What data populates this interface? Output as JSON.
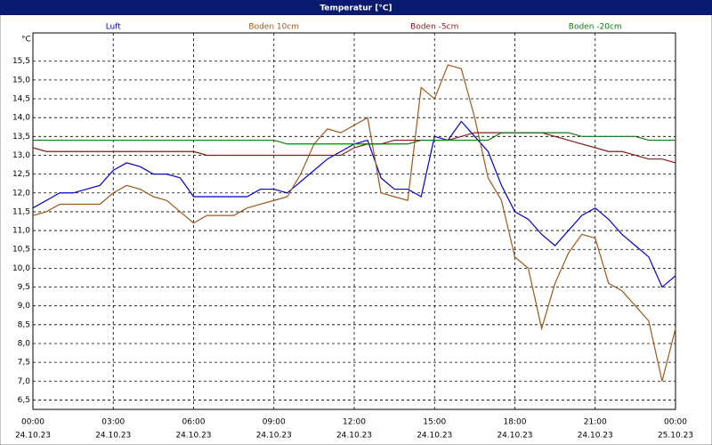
{
  "chart_data": {
    "type": "line",
    "title": "Temperatur [°C]",
    "y_unit": "°C",
    "x": [
      0,
      0.5,
      1,
      1.5,
      2,
      2.5,
      3,
      3.5,
      4,
      4.5,
      5,
      5.5,
      6,
      6.5,
      7,
      7.5,
      8,
      8.5,
      9,
      9.5,
      10,
      10.5,
      11,
      11.5,
      12,
      12.5,
      13,
      13.5,
      14,
      14.5,
      15,
      15.5,
      16,
      16.5,
      17,
      17.5,
      18,
      18.5,
      19,
      19.5,
      20,
      20.5,
      21,
      21.5,
      22,
      22.5,
      23,
      23.5,
      24
    ],
    "series": [
      {
        "name": "Luft",
        "color": "#0000cc",
        "values": [
          11.6,
          11.8,
          12.0,
          12.0,
          12.1,
          12.2,
          12.6,
          12.8,
          12.7,
          12.5,
          12.5,
          12.4,
          11.9,
          11.9,
          11.9,
          11.9,
          11.9,
          12.1,
          12.1,
          12.0,
          12.3,
          12.6,
          12.9,
          13.1,
          13.3,
          13.4,
          12.4,
          12.1,
          12.1,
          11.9,
          13.5,
          13.4,
          13.9,
          13.5,
          13.1,
          12.2,
          11.5,
          11.3,
          10.9,
          10.6,
          11.0,
          11.4,
          11.6,
          11.3,
          10.9,
          10.6,
          10.3,
          9.5,
          9.8
        ]
      },
      {
        "name": "Boden 10cm",
        "color": "#a0581a",
        "values": [
          11.4,
          11.5,
          11.7,
          11.7,
          11.7,
          11.7,
          12.0,
          12.2,
          12.1,
          11.9,
          11.8,
          11.5,
          11.2,
          11.4,
          11.4,
          11.4,
          11.6,
          11.7,
          11.8,
          11.9,
          12.5,
          13.3,
          13.7,
          13.6,
          13.8,
          14.0,
          12.0,
          11.9,
          11.8,
          14.8,
          14.5,
          15.4,
          15.3,
          14.0,
          12.4,
          11.8,
          10.3,
          10.0,
          8.4,
          9.6,
          10.4,
          10.9,
          10.8,
          9.6,
          9.4,
          9.0,
          8.6,
          7.0,
          8.4
        ]
      },
      {
        "name": "Boden -5cm",
        "color": "#8b1a1a",
        "values": [
          13.2,
          13.1,
          13.1,
          13.1,
          13.1,
          13.1,
          13.1,
          13.1,
          13.1,
          13.1,
          13.1,
          13.1,
          13.1,
          13.0,
          13.0,
          13.0,
          13.0,
          13.0,
          13.0,
          13.0,
          13.0,
          13.0,
          13.0,
          13.0,
          13.2,
          13.3,
          13.3,
          13.4,
          13.4,
          13.4,
          13.4,
          13.4,
          13.5,
          13.6,
          13.6,
          13.6,
          13.6,
          13.6,
          13.6,
          13.5,
          13.4,
          13.3,
          13.2,
          13.1,
          13.1,
          13.0,
          12.9,
          12.9,
          12.8
        ]
      },
      {
        "name": "Boden -20cm",
        "color": "#0a7a0a",
        "values": [
          13.4,
          13.4,
          13.4,
          13.4,
          13.4,
          13.4,
          13.4,
          13.4,
          13.4,
          13.4,
          13.4,
          13.4,
          13.4,
          13.4,
          13.4,
          13.4,
          13.4,
          13.4,
          13.4,
          13.3,
          13.3,
          13.3,
          13.3,
          13.3,
          13.3,
          13.3,
          13.3,
          13.3,
          13.3,
          13.4,
          13.4,
          13.4,
          13.4,
          13.4,
          13.4,
          13.6,
          13.6,
          13.6,
          13.6,
          13.6,
          13.6,
          13.5,
          13.5,
          13.5,
          13.5,
          13.5,
          13.4,
          13.4,
          13.4
        ]
      }
    ],
    "xlim": [
      0,
      24
    ],
    "xticks": [
      {
        "value": 0,
        "label": "00:00",
        "date": "24.10.23"
      },
      {
        "value": 3,
        "label": "03:00",
        "date": "24.10.23"
      },
      {
        "value": 6,
        "label": "06:00",
        "date": "24.10.23"
      },
      {
        "value": 9,
        "label": "09:00",
        "date": "24.10.23"
      },
      {
        "value": 12,
        "label": "12:00",
        "date": "24.10.23"
      },
      {
        "value": 15,
        "label": "15:00",
        "date": "24.10.23"
      },
      {
        "value": 18,
        "label": "18:00",
        "date": "24.10.23"
      },
      {
        "value": 21,
        "label": "21:00",
        "date": "24.10.23"
      },
      {
        "value": 24,
        "label": "00:00",
        "date": "25.10.23"
      }
    ],
    "ylim": [
      6.25,
      16.25
    ],
    "yticks": [
      {
        "value": 6.5,
        "label": "6,5"
      },
      {
        "value": 7,
        "label": "7,0"
      },
      {
        "value": 7.5,
        "label": "7,5"
      },
      {
        "value": 8,
        "label": "8,0"
      },
      {
        "value": 8.5,
        "label": "8,5"
      },
      {
        "value": 9,
        "label": "9,0"
      },
      {
        "value": 9.5,
        "label": "9,5"
      },
      {
        "value": 10,
        "label": "10,0"
      },
      {
        "value": 10.5,
        "label": "10,5"
      },
      {
        "value": 11,
        "label": "11,0"
      },
      {
        "value": 11.5,
        "label": "11,5"
      },
      {
        "value": 12,
        "label": "12,0"
      },
      {
        "value": 12.5,
        "label": "12,5"
      },
      {
        "value": 13,
        "label": "13,0"
      },
      {
        "value": 13.5,
        "label": "13,5"
      },
      {
        "value": 14,
        "label": "14,0"
      },
      {
        "value": 14.5,
        "label": "14,5"
      },
      {
        "value": 15,
        "label": "15,0"
      },
      {
        "value": 15.5,
        "label": "15,5"
      }
    ],
    "grid": true
  }
}
